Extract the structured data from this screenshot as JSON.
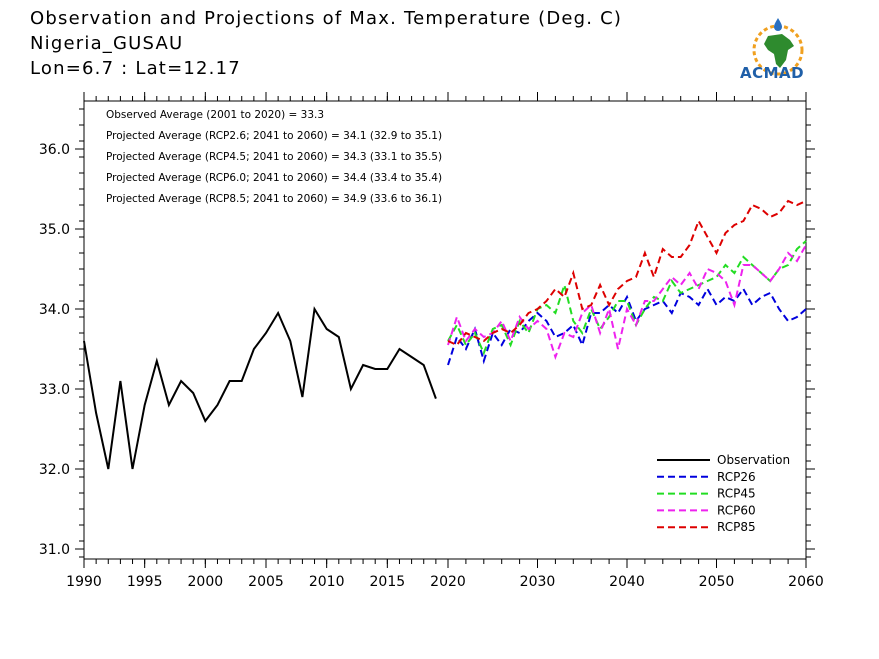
{
  "header": {
    "title_line1": "Observation and Projections of Max. Temperature (Deg. C)",
    "title_line2": "Nigeria_GUSAU",
    "title_line3": "Lon=6.7 : Lat=12.17"
  },
  "logo": {
    "text": "ACMAD",
    "icon": "africa-map-icon"
  },
  "annotations": [
    "Observed Average (2001 to 2020) = 33.3",
    "Projected Average (RCP2.6; 2041 to 2060) = 34.1 (32.9 to 35.1)",
    "Projected Average (RCP4.5; 2041 to 2060) = 34.3 (33.1 to 35.5)",
    "Projected Average (RCP6.0; 2041 to 2060) = 34.4 (33.4 to 35.4)",
    "Projected Average (RCP8.5; 2041 to 2060) = 34.9 (33.6 to 36.1)"
  ],
  "chart_data": {
    "type": "line",
    "xlim": [
      1990,
      2060
    ],
    "ylim": [
      30.85,
      36.6
    ],
    "xticks": [
      1990,
      1995,
      2000,
      2005,
      2010,
      2015,
      2020,
      2030,
      2040,
      2050,
      2060
    ],
    "yticks": [
      31.0,
      32.0,
      33.0,
      34.0,
      35.0,
      36.0
    ],
    "ytick_labels": [
      "31.0",
      "32.0",
      "33.0",
      "34.0",
      "35.0",
      "36.0"
    ],
    "legend_position": "bottom-right",
    "series": [
      {
        "name": "Observation",
        "color": "#000000",
        "dashed": false,
        "x": [
          1990,
          1991,
          1992,
          1993,
          1994,
          1995,
          1996,
          1997,
          1998,
          1999,
          2000,
          2001,
          2002,
          2003,
          2004,
          2005,
          2006,
          2007,
          2008,
          2009,
          2010,
          2011,
          2012,
          2013,
          2014,
          2015,
          2016,
          2017,
          2018,
          2019,
          2020
        ],
        "y": [
          33.6,
          32.7,
          32.0,
          33.1,
          32.0,
          32.8,
          33.35,
          32.8,
          33.1,
          32.95,
          32.6,
          32.8,
          33.1,
          33.1,
          33.5,
          33.7,
          33.95,
          33.6,
          32.9,
          34.0,
          33.75,
          33.65,
          33.0,
          33.3,
          33.25,
          33.25,
          33.5,
          33.4,
          33.3,
          32.88,
          null
        ]
      },
      {
        "name": "RCP26",
        "color": "#0000dd",
        "dashed": true,
        "x": [
          2020,
          2021,
          2022,
          2023,
          2024,
          2025,
          2026,
          2027,
          2028,
          2029,
          2030,
          2031,
          2032,
          2033,
          2034,
          2035,
          2036,
          2037,
          2038,
          2039,
          2040,
          2041,
          2042,
          2043,
          2044,
          2045,
          2046,
          2047,
          2048,
          2049,
          2050,
          2051,
          2052,
          2053,
          2054,
          2055,
          2056,
          2057,
          2058,
          2059,
          2060
        ],
        "y": [
          33.3,
          33.65,
          33.5,
          33.75,
          33.35,
          33.7,
          33.55,
          33.75,
          33.7,
          33.85,
          33.95,
          33.85,
          33.65,
          33.7,
          33.8,
          33.55,
          33.95,
          33.95,
          34.05,
          33.95,
          34.15,
          33.85,
          34.0,
          34.05,
          34.1,
          33.95,
          34.2,
          34.15,
          34.05,
          34.25,
          34.05,
          34.15,
          34.1,
          34.25,
          34.05,
          34.15,
          34.2,
          34.0,
          33.85,
          33.9,
          34.0
        ]
      },
      {
        "name": "RCP45",
        "color": "#22dd22",
        "dashed": true,
        "x": [
          2020,
          2021,
          2022,
          2023,
          2024,
          2025,
          2026,
          2027,
          2028,
          2029,
          2030,
          2031,
          2032,
          2033,
          2034,
          2035,
          2036,
          2037,
          2038,
          2039,
          2040,
          2041,
          2042,
          2043,
          2044,
          2045,
          2046,
          2047,
          2048,
          2049,
          2050,
          2051,
          2052,
          2053,
          2054,
          2055,
          2056,
          2057,
          2058,
          2059,
          2060
        ],
        "y": [
          33.6,
          33.8,
          33.55,
          33.7,
          33.45,
          33.75,
          33.8,
          33.55,
          33.85,
          33.7,
          34.0,
          34.05,
          33.95,
          34.3,
          33.85,
          33.7,
          34.0,
          33.75,
          33.9,
          34.1,
          34.1,
          33.8,
          34.0,
          34.15,
          34.1,
          34.35,
          34.2,
          34.25,
          34.3,
          34.35,
          34.4,
          34.55,
          34.45,
          34.65,
          34.55,
          34.45,
          34.35,
          34.5,
          34.55,
          34.75,
          34.85
        ]
      },
      {
        "name": "RCP60",
        "color": "#ee22ee",
        "dashed": true,
        "x": [
          2020,
          2021,
          2022,
          2023,
          2024,
          2025,
          2026,
          2027,
          2028,
          2029,
          2030,
          2031,
          2032,
          2033,
          2034,
          2035,
          2036,
          2037,
          2038,
          2039,
          2040,
          2041,
          2042,
          2043,
          2044,
          2045,
          2046,
          2047,
          2048,
          2049,
          2050,
          2051,
          2052,
          2053,
          2054,
          2055,
          2056,
          2057,
          2058,
          2059,
          2060
        ],
        "y": [
          33.55,
          33.9,
          33.6,
          33.75,
          33.65,
          33.7,
          33.85,
          33.6,
          33.9,
          33.75,
          33.85,
          33.75,
          33.4,
          33.7,
          33.65,
          33.95,
          34.05,
          33.7,
          34.0,
          33.5,
          34.0,
          33.8,
          34.1,
          34.1,
          34.25,
          34.4,
          34.3,
          34.45,
          34.25,
          34.5,
          34.45,
          34.35,
          34.05,
          34.55,
          34.55,
          34.45,
          34.35,
          34.5,
          34.7,
          34.6,
          34.8
        ]
      },
      {
        "name": "RCP85",
        "color": "#dd0000",
        "dashed": true,
        "x": [
          2020,
          2021,
          2022,
          2023,
          2024,
          2025,
          2026,
          2027,
          2028,
          2029,
          2030,
          2031,
          2032,
          2033,
          2034,
          2035,
          2036,
          2037,
          2038,
          2039,
          2040,
          2041,
          2042,
          2043,
          2044,
          2045,
          2046,
          2047,
          2048,
          2049,
          2050,
          2051,
          2052,
          2053,
          2054,
          2055,
          2056,
          2057,
          2058,
          2059,
          2060
        ],
        "y": [
          33.6,
          33.55,
          33.7,
          33.65,
          33.6,
          33.7,
          33.75,
          33.7,
          33.8,
          33.95,
          34.0,
          34.1,
          34.25,
          34.15,
          34.45,
          34.0,
          34.05,
          34.3,
          34.05,
          34.25,
          34.35,
          34.4,
          34.7,
          34.4,
          34.75,
          34.65,
          34.65,
          34.8,
          35.1,
          34.9,
          34.7,
          34.95,
          35.05,
          35.1,
          35.3,
          35.25,
          35.15,
          35.2,
          35.35,
          35.3,
          35.35
        ]
      }
    ]
  }
}
